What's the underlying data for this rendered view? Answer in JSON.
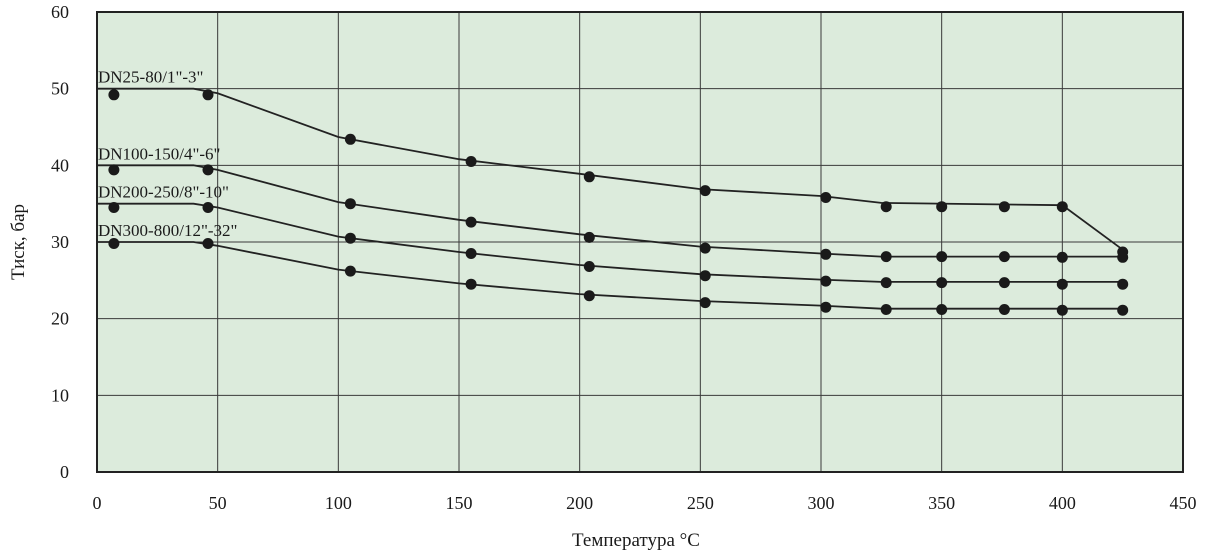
{
  "chart_data": {
    "type": "line",
    "xlabel": "Температура °C",
    "ylabel": "Тиск, бар",
    "xlim": [
      0,
      450
    ],
    "ylim": [
      0,
      60
    ],
    "xticks": [
      "0",
      "50",
      "100",
      "150",
      "200",
      "250",
      "300",
      "350",
      "400",
      "450"
    ],
    "yticks": [
      "0",
      "10",
      "20",
      "30",
      "40",
      "50",
      "60"
    ],
    "grid": true,
    "colors": {
      "plot_background": "#dcebdc",
      "line": "#222222",
      "marker": "#1a1a1a"
    },
    "series": [
      {
        "name": "DN25-80/1\"-3\"",
        "x": [
          0,
          40,
          50,
          100,
          150,
          200,
          250,
          300,
          325,
          400,
          425
        ],
        "y": [
          50,
          50,
          49.4,
          43.7,
          40.8,
          38.9,
          36.9,
          36.0,
          35.1,
          34.8,
          29.0
        ],
        "points": [
          [
            7,
            49.2
          ],
          [
            46,
            49.2
          ],
          [
            105,
            43.4
          ],
          [
            155,
            40.5
          ],
          [
            204,
            38.5
          ],
          [
            252,
            36.7
          ],
          [
            302,
            35.8
          ],
          [
            327,
            34.6
          ],
          [
            350,
            34.6
          ],
          [
            376,
            34.6
          ],
          [
            400,
            34.6
          ],
          [
            425,
            28.7
          ]
        ]
      },
      {
        "name": "DN100-150/4\"-6\"",
        "x": [
          0,
          40,
          50,
          100,
          150,
          200,
          250,
          300,
          325,
          425
        ],
        "y": [
          40,
          40,
          39.4,
          35.2,
          32.9,
          31.0,
          29.4,
          28.5,
          28.1,
          28.1
        ],
        "points": [
          [
            7,
            39.4
          ],
          [
            46,
            39.4
          ],
          [
            105,
            35.0
          ],
          [
            155,
            32.6
          ],
          [
            204,
            30.6
          ],
          [
            252,
            29.2
          ],
          [
            302,
            28.4
          ],
          [
            327,
            28.1
          ],
          [
            350,
            28.1
          ],
          [
            376,
            28.1
          ],
          [
            400,
            28.0
          ],
          [
            425,
            28.0
          ]
        ]
      },
      {
        "name": "DN200-250/8\"-10\"",
        "x": [
          0,
          40,
          50,
          100,
          150,
          200,
          250,
          300,
          325,
          425
        ],
        "y": [
          35,
          35,
          34.5,
          30.7,
          28.7,
          27.0,
          25.8,
          25.1,
          24.8,
          24.8
        ],
        "points": [
          [
            7,
            34.5
          ],
          [
            46,
            34.5
          ],
          [
            105,
            30.5
          ],
          [
            155,
            28.5
          ],
          [
            204,
            26.8
          ],
          [
            252,
            25.6
          ],
          [
            302,
            24.9
          ],
          [
            327,
            24.7
          ],
          [
            350,
            24.7
          ],
          [
            376,
            24.7
          ],
          [
            400,
            24.5
          ],
          [
            425,
            24.5
          ]
        ]
      },
      {
        "name": "DN300-800/12\"-32\"",
        "x": [
          0,
          40,
          50,
          100,
          150,
          200,
          250,
          300,
          325,
          425
        ],
        "y": [
          30,
          30,
          29.5,
          26.4,
          24.6,
          23.2,
          22.3,
          21.7,
          21.3,
          21.3
        ],
        "points": [
          [
            7,
            29.8
          ],
          [
            46,
            29.8
          ],
          [
            105,
            26.2
          ],
          [
            155,
            24.5
          ],
          [
            204,
            23.0
          ],
          [
            252,
            22.1
          ],
          [
            302,
            21.5
          ],
          [
            327,
            21.2
          ],
          [
            350,
            21.2
          ],
          [
            376,
            21.2
          ],
          [
            400,
            21.1
          ],
          [
            425,
            21.1
          ]
        ]
      }
    ]
  }
}
